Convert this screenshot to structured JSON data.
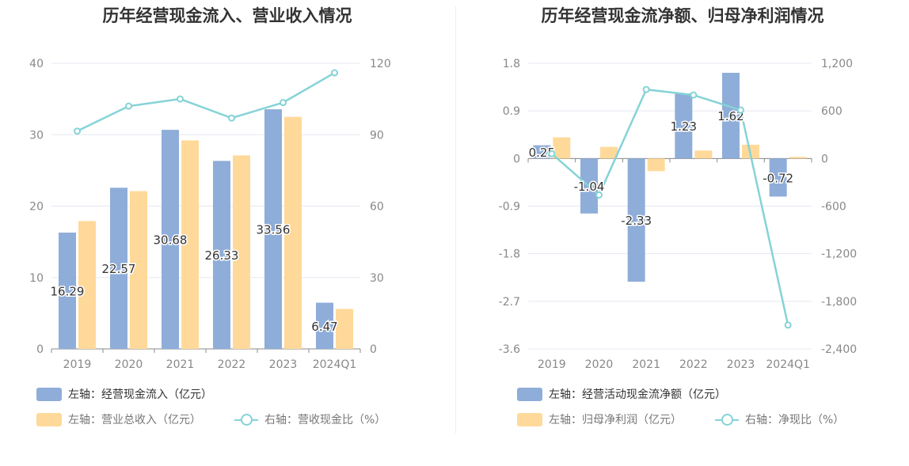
{
  "colors": {
    "bar_primary": "#8fadd9",
    "bar_secondary": "#ffd99a",
    "line": "#85d3d7",
    "grid": "#e6e8f2",
    "axis_text": "#888888"
  },
  "chart_data": [
    {
      "type": "bar",
      "title": "历年经营现金流入、营业收入情况",
      "categories": [
        "2019",
        "2020",
        "2021",
        "2022",
        "2023",
        "2024Q1"
      ],
      "y_left": {
        "ticks": [
          "0",
          "10",
          "20",
          "30",
          "40"
        ],
        "lim": [
          0,
          40
        ]
      },
      "y_right": {
        "ticks": [
          "0",
          "30",
          "60",
          "90",
          "120"
        ],
        "lim": [
          0,
          120
        ]
      },
      "series": [
        {
          "name": "左轴：经营现金流入（亿元）",
          "kind": "bar",
          "axis": "left",
          "values": [
            16.29,
            22.57,
            30.68,
            26.33,
            33.56,
            6.47
          ],
          "labels": [
            "16.29",
            "22.57",
            "30.68",
            "26.33",
            "33.56",
            "6.47"
          ]
        },
        {
          "name": "左轴：营业总收入（亿元）",
          "kind": "bar",
          "axis": "left",
          "values": [
            17.9,
            22.1,
            29.2,
            27.1,
            32.5,
            5.6
          ]
        },
        {
          "name": "右轴：营收现金比（%）",
          "kind": "line",
          "axis": "right",
          "values": [
            91.5,
            102,
            105,
            97,
            103.5,
            116
          ]
        }
      ],
      "grid": true
    },
    {
      "type": "bar",
      "title": "历年经营现金流净额、归母净利润情况",
      "categories": [
        "2019",
        "2020",
        "2021",
        "2022",
        "2023",
        "2024Q1"
      ],
      "y_left": {
        "ticks": [
          "-3.6",
          "-2.7",
          "-1.8",
          "-0.9",
          "0",
          "0.9",
          "1.8"
        ],
        "lim": [
          -3.6,
          1.8
        ]
      },
      "y_right": {
        "ticks": [
          "-2,400",
          "-1,800",
          "-1,200",
          "-600",
          "0",
          "600",
          "1,200"
        ],
        "lim": [
          -2400,
          1200
        ]
      },
      "series": [
        {
          "name": "左轴：经营活动现金流净额（亿元）",
          "kind": "bar",
          "axis": "left",
          "values": [
            0.25,
            -1.04,
            -2.33,
            1.23,
            1.62,
            -0.72
          ],
          "labels": [
            "0.25",
            "-1.04",
            "-2.33",
            "1.23",
            "1.62",
            "-0.72"
          ]
        },
        {
          "name": "左轴：归母净利润（亿元）",
          "kind": "bar",
          "axis": "left",
          "values": [
            0.4,
            0.22,
            -0.24,
            0.15,
            0.26,
            0.03
          ]
        },
        {
          "name": "右轴：净现比（%）",
          "kind": "line",
          "axis": "right",
          "values": [
            60,
            -460,
            870,
            800,
            610,
            -2100
          ]
        }
      ],
      "grid": true
    }
  ]
}
